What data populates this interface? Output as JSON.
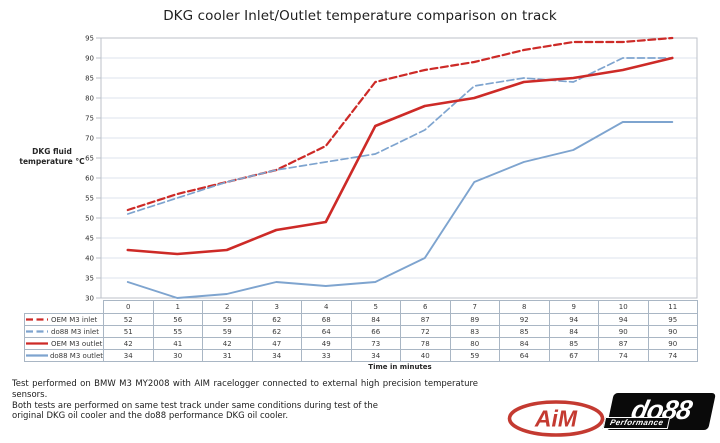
{
  "y_axis": {
    "line1": "DKG fluid",
    "line2": "temperature °C"
  },
  "footer": {
    "line1": "Test performed on BMW M3 MY2008 with AIM racelogger connected to external high precision temperature sensors.",
    "line2": "Both tests are performed on same test track under same conditions during test of the",
    "line3": "original DKG oil cooler and the do88 performance DKG oil cooler."
  },
  "logos": {
    "aim": "AiM",
    "do88": "do88",
    "do88_sub": "Performance"
  },
  "colors": {
    "red": "#CD2A27",
    "blue": "#7EA4CF",
    "grid": "#dde3ec",
    "plot_border": "#bcc2ca",
    "table_border": "#a9b6c4"
  },
  "chart_data": {
    "type": "line",
    "title": "DKG cooler Inlet/Outlet temperature comparison on track",
    "x": [
      0,
      1,
      2,
      3,
      4,
      5,
      6,
      7,
      8,
      9,
      10,
      11
    ],
    "xlabel": "Time in minutes",
    "ylabel": "DKG fluid temperature °C",
    "ylim": [
      30,
      95
    ],
    "ytick_step": 5,
    "grid": true,
    "legend_position": "table-left",
    "series": [
      {
        "name": "OEM M3 inlet",
        "color": "#CD2A27",
        "style": "dashed",
        "width": 2.2,
        "values": [
          52,
          56,
          59,
          62,
          68,
          84,
          87,
          89,
          92,
          94,
          94,
          95
        ]
      },
      {
        "name": "do88 M3 inlet",
        "color": "#7EA4CF",
        "style": "dashed",
        "width": 1.7,
        "values": [
          51,
          55,
          59,
          62,
          64,
          66,
          72,
          83,
          85,
          84,
          90,
          90
        ]
      },
      {
        "name": "OEM M3 outlet",
        "color": "#CD2A27",
        "style": "solid",
        "width": 2.6,
        "values": [
          42,
          41,
          42,
          47,
          49,
          73,
          78,
          80,
          84,
          85,
          87,
          90
        ]
      },
      {
        "name": "do88 M3 outlet",
        "color": "#7EA4CF",
        "style": "solid",
        "width": 1.9,
        "values": [
          34,
          30,
          31,
          34,
          33,
          34,
          40,
          59,
          64,
          67,
          74,
          74
        ]
      }
    ]
  }
}
